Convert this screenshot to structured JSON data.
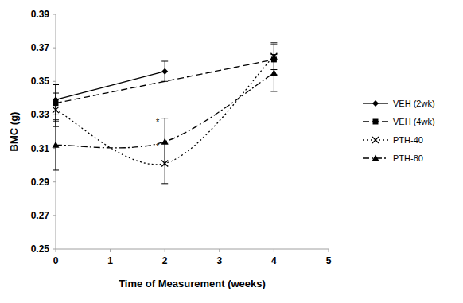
{
  "chart_data": {
    "type": "line",
    "x_label": "Time of Measurement (weeks)",
    "y_label": "BMC (g)",
    "xlim": [
      0,
      5
    ],
    "xticks": [
      0,
      1,
      2,
      3,
      4,
      5
    ],
    "ylim": [
      0.25,
      0.39
    ],
    "yticks": [
      0.25,
      0.27,
      0.29,
      0.31,
      0.33,
      0.35,
      0.37,
      0.39
    ],
    "grid": false,
    "legend": "right",
    "series": [
      {
        "name": "VEH (2wk)",
        "color": "#000000",
        "marker": "diamond",
        "line_style": "solid",
        "x": [
          0,
          2
        ],
        "values": [
          0.339,
          0.356
        ],
        "errors": [
          0.009,
          0.006
        ]
      },
      {
        "name": "VEH (4wk)",
        "color": "#000000",
        "marker": "square",
        "line_style": "dashed",
        "x": [
          0,
          4
        ],
        "values": [
          0.337,
          0.363
        ],
        "errors": [
          0.011,
          0.009
        ]
      },
      {
        "name": "PTH-40",
        "color": "#000000",
        "marker": "x",
        "line_style": "dotted",
        "x": [
          0,
          2,
          4
        ],
        "values": [
          0.333,
          0.301,
          0.365
        ],
        "errors": [
          0.01,
          0.012,
          0.008
        ]
      },
      {
        "name": "PTH-80",
        "color": "#000000",
        "marker": "triangle",
        "line_style": "dash-dot",
        "x": [
          0,
          2,
          4
        ],
        "values": [
          0.312,
          0.314,
          0.355
        ],
        "errors": [
          0.015,
          0.014,
          0.011
        ]
      }
    ],
    "annotations": [
      {
        "text": "*",
        "series": 2,
        "point": 1
      },
      {
        "text": "*",
        "series": 3,
        "point": 1
      }
    ]
  }
}
